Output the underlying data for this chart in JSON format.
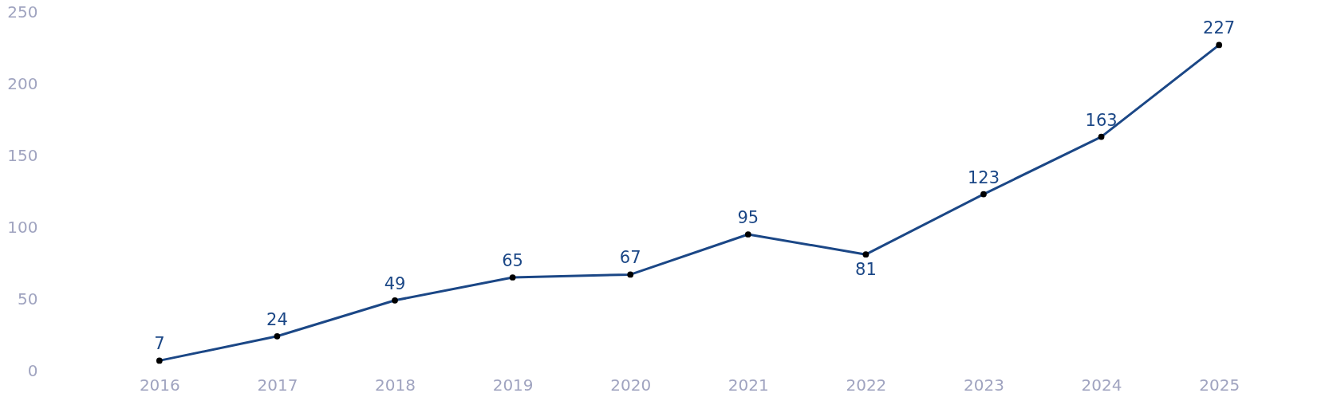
{
  "chart_data": {
    "type": "line",
    "categories": [
      "2016",
      "2017",
      "2018",
      "2019",
      "2020",
      "2021",
      "2022",
      "2023",
      "2024",
      "2025"
    ],
    "series": [
      {
        "color": "#1b4786",
        "values": [
          7,
          24,
          49,
          65,
          67,
          95,
          81,
          123,
          163,
          227
        ]
      }
    ],
    "ylim": [
      0,
      250
    ],
    "yticks": [
      0,
      50,
      100,
      150,
      200,
      250
    ],
    "grid": false,
    "marker": "circle",
    "line_style": "solid",
    "data_labels": true
  }
}
